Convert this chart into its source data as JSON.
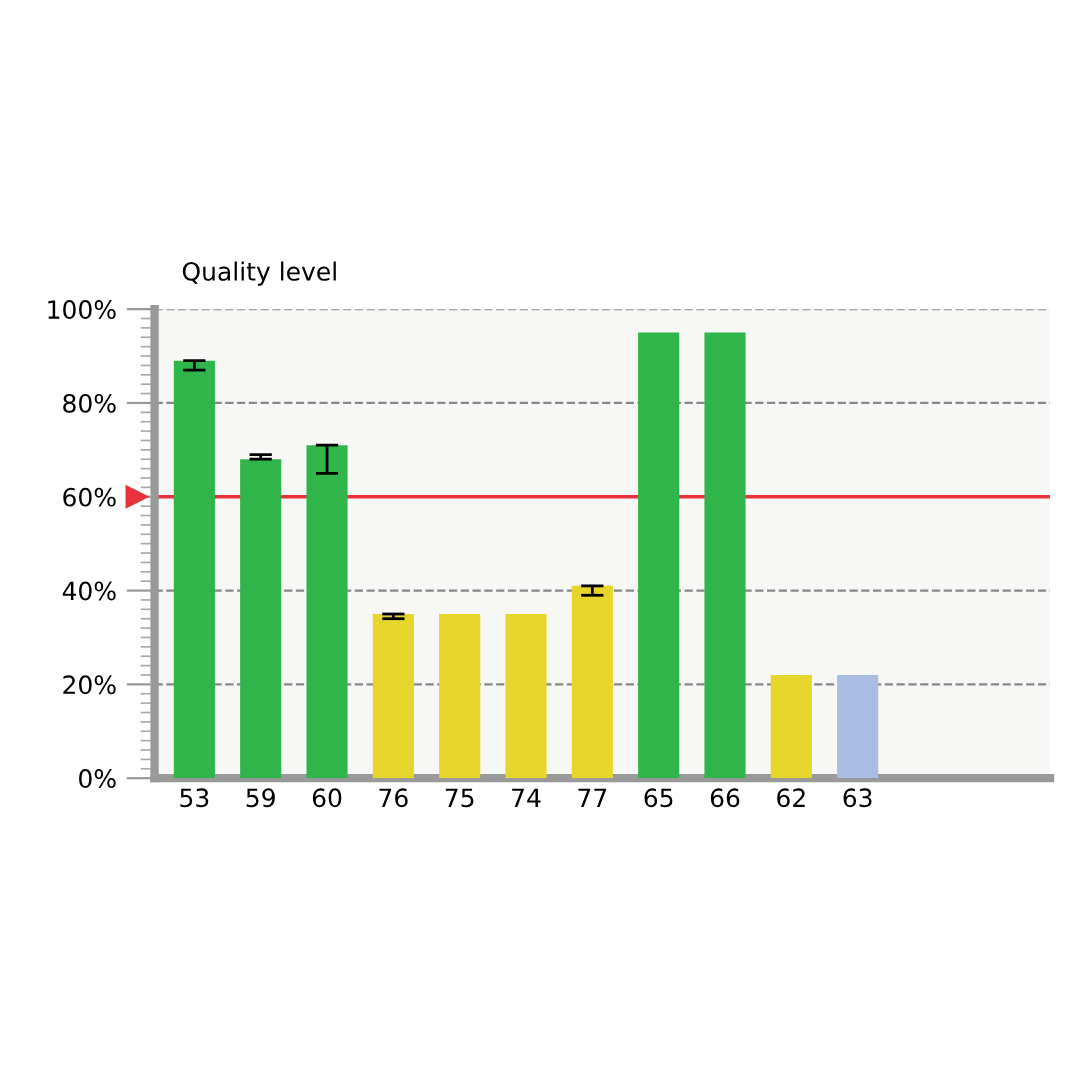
{
  "chart_data": {
    "type": "bar",
    "ylabel": "Quality level",
    "categories": [
      "53",
      "59",
      "60",
      "76",
      "75",
      "74",
      "77",
      "65",
      "66",
      "62",
      "63"
    ],
    "values": [
      89,
      68,
      71,
      35,
      35,
      35,
      41,
      95,
      95,
      22,
      22
    ],
    "colors": [
      "#2fb54a",
      "#2fb54a",
      "#2fb54a",
      "#e6d62c",
      "#e6d62c",
      "#e6d62c",
      "#e6d62c",
      "#2fb54a",
      "#2fb54a",
      "#e6d62c",
      "#a9bde2"
    ],
    "errors": [
      [
        87,
        89
      ],
      [
        68,
        69
      ],
      [
        65,
        71
      ],
      [
        34,
        35
      ],
      null,
      null,
      [
        39,
        41
      ],
      null,
      null,
      null,
      null
    ],
    "ylim": [
      0,
      100
    ],
    "yticks": [
      {
        "value": 0,
        "label": "0%"
      },
      {
        "value": 20,
        "label": "20%"
      },
      {
        "value": 40,
        "label": "40%"
      },
      {
        "value": 60,
        "label": "60%"
      },
      {
        "value": 80,
        "label": "80%"
      },
      {
        "value": 100,
        "label": "100%"
      }
    ],
    "ref_lines": [
      {
        "axis": "y",
        "value": 60,
        "color": "#e8323c"
      }
    ],
    "grid": "y"
  }
}
